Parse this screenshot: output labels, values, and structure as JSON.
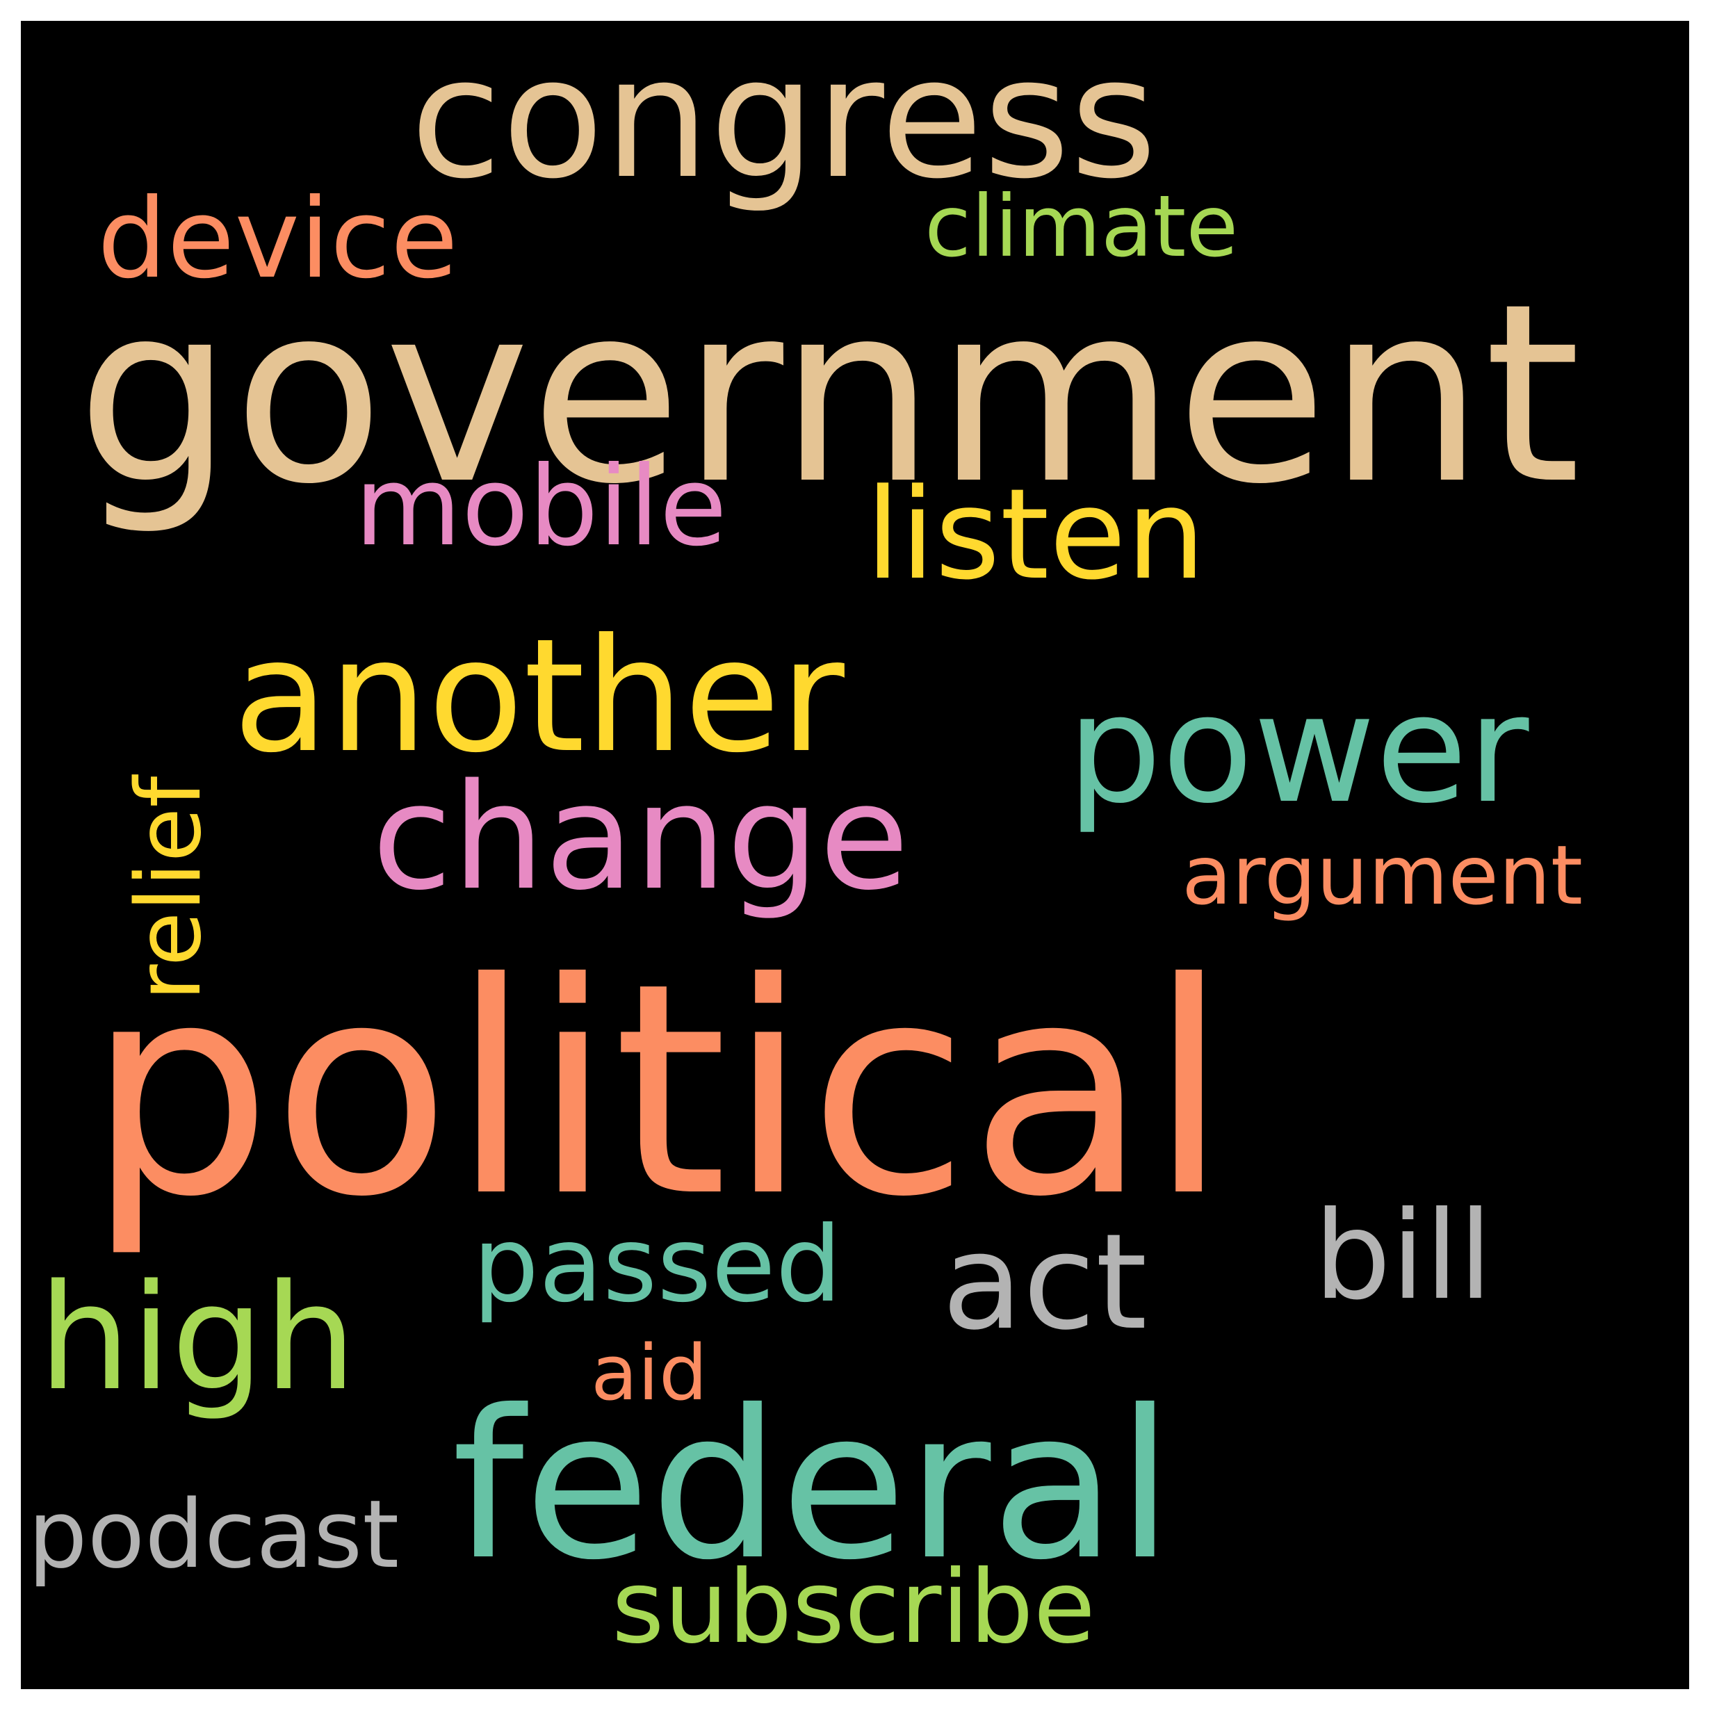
{
  "wordcloud": {
    "background": "#000000",
    "words": {
      "political": {
        "text": "political",
        "color": "#fc8d62"
      },
      "government": {
        "text": "government",
        "color": "#e5c494"
      },
      "congress": {
        "text": "congress",
        "color": "#e5c494"
      },
      "another": {
        "text": "another",
        "color": "#ffd92f"
      },
      "federal": {
        "text": "federal",
        "color": "#66c2a5"
      },
      "power": {
        "text": "power",
        "color": "#66c2a5"
      },
      "change": {
        "text": "change",
        "color": "#e78ac3"
      },
      "high": {
        "text": "high",
        "color": "#a6d854"
      },
      "listen": {
        "text": "listen",
        "color": "#ffd92f"
      },
      "device": {
        "text": "device",
        "color": "#fc8d62"
      },
      "mobile": {
        "text": "mobile",
        "color": "#e78ac3"
      },
      "passed": {
        "text": "passed",
        "color": "#66c2a5"
      },
      "act": {
        "text": "act",
        "color": "#b3b3b3"
      },
      "bill": {
        "text": "bill",
        "color": "#b3b3b3"
      },
      "climate": {
        "text": "climate",
        "color": "#a6d854"
      },
      "argument": {
        "text": "argument",
        "color": "#fc8d62"
      },
      "aid": {
        "text": "aid",
        "color": "#fc8d62"
      },
      "podcast": {
        "text": "podcast",
        "color": "#b3b3b3"
      },
      "subscribe": {
        "text": "subscribe",
        "color": "#a6d854"
      },
      "relief": {
        "text": "relief",
        "color": "#ffd92f"
      }
    }
  }
}
